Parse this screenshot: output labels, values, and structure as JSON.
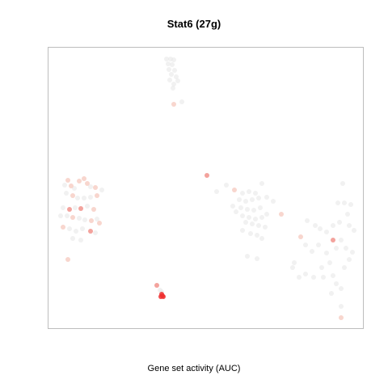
{
  "chart_data": {
    "type": "scatter",
    "title": "Stat6 (27g)",
    "xlabel": "Gene set activity (AUC)",
    "ylabel": "",
    "xlim": [
      0,
      390
    ],
    "ylim": [
      0,
      348
    ],
    "grid": false,
    "legend": "none",
    "colors": {
      "low": "#e6e6e6",
      "mid": "#f6c8bd",
      "high": "#ee3030"
    },
    "series": [
      {
        "values_note_units": "x,y in plot data units; level 0=none,1=light,2=medium,3=high",
        "points": [
          [
            146,
            334,
            0
          ],
          [
            151,
            334,
            0
          ],
          [
            155,
            333,
            0
          ],
          [
            148,
            328,
            0
          ],
          [
            153,
            327,
            0
          ],
          [
            149,
            321,
            0
          ],
          [
            156,
            320,
            0
          ],
          [
            152,
            315,
            0
          ],
          [
            158,
            312,
            0
          ],
          [
            150,
            308,
            0
          ],
          [
            155,
            303,
            0
          ],
          [
            160,
            307,
            0
          ],
          [
            154,
            298,
            0
          ],
          [
            165,
            281,
            0
          ],
          [
            155,
            278,
            1
          ],
          [
            24,
            184,
            1
          ],
          [
            20,
            178,
            0
          ],
          [
            28,
            177,
            1
          ],
          [
            32,
            174,
            0
          ],
          [
            38,
            183,
            1
          ],
          [
            44,
            186,
            1
          ],
          [
            48,
            180,
            1
          ],
          [
            52,
            176,
            0
          ],
          [
            58,
            175,
            1
          ],
          [
            66,
            172,
            0
          ],
          [
            22,
            168,
            0
          ],
          [
            30,
            165,
            1
          ],
          [
            36,
            162,
            0
          ],
          [
            44,
            162,
            0
          ],
          [
            52,
            163,
            0
          ],
          [
            60,
            165,
            1
          ],
          [
            18,
            150,
            0
          ],
          [
            26,
            148,
            2
          ],
          [
            33,
            150,
            0
          ],
          [
            40,
            149,
            2
          ],
          [
            48,
            152,
            0
          ],
          [
            56,
            148,
            1
          ],
          [
            15,
            140,
            0
          ],
          [
            23,
            140,
            0
          ],
          [
            30,
            138,
            1
          ],
          [
            38,
            137,
            0
          ],
          [
            45,
            135,
            0
          ],
          [
            53,
            134,
            1
          ],
          [
            60,
            136,
            0
          ],
          [
            63,
            131,
            1
          ],
          [
            18,
            126,
            1
          ],
          [
            26,
            124,
            0
          ],
          [
            34,
            121,
            0
          ],
          [
            42,
            124,
            0
          ],
          [
            52,
            121,
            2
          ],
          [
            58,
            119,
            0
          ],
          [
            30,
            112,
            0
          ],
          [
            40,
            110,
            0
          ],
          [
            24,
            86,
            1
          ],
          [
            196,
            190,
            2
          ],
          [
            208,
            170,
            0
          ],
          [
            220,
            178,
            0
          ],
          [
            230,
            172,
            1
          ],
          [
            240,
            168,
            0
          ],
          [
            248,
            170,
            0
          ],
          [
            256,
            168,
            0
          ],
          [
            264,
            180,
            0
          ],
          [
            236,
            160,
            0
          ],
          [
            244,
            158,
            0
          ],
          [
            252,
            160,
            0
          ],
          [
            260,
            162,
            0
          ],
          [
            270,
            163,
            0
          ],
          [
            278,
            158,
            0
          ],
          [
            228,
            152,
            0
          ],
          [
            238,
            150,
            0
          ],
          [
            246,
            148,
            0
          ],
          [
            254,
            147,
            0
          ],
          [
            262,
            150,
            0
          ],
          [
            270,
            142,
            0
          ],
          [
            288,
            142,
            1
          ],
          [
            232,
            145,
            0
          ],
          [
            240,
            140,
            0
          ],
          [
            248,
            138,
            0
          ],
          [
            256,
            136,
            0
          ],
          [
            264,
            138,
            0
          ],
          [
            244,
            132,
            0
          ],
          [
            252,
            130,
            0
          ],
          [
            260,
            128,
            0
          ],
          [
            268,
            126,
            0
          ],
          [
            240,
            122,
            0
          ],
          [
            250,
            118,
            0
          ],
          [
            258,
            116,
            0
          ],
          [
            264,
            112,
            0
          ],
          [
            246,
            90,
            0
          ],
          [
            258,
            87,
            0
          ],
          [
            320,
            134,
            0
          ],
          [
            330,
            128,
            0
          ],
          [
            336,
            124,
            0
          ],
          [
            344,
            120,
            0
          ],
          [
            352,
            128,
            0
          ],
          [
            360,
            132,
            0
          ],
          [
            364,
            180,
            0
          ],
          [
            358,
            156,
            0
          ],
          [
            366,
            156,
            0
          ],
          [
            374,
            154,
            0
          ],
          [
            370,
            142,
            0
          ],
          [
            372,
            128,
            0
          ],
          [
            378,
            122,
            0
          ],
          [
            362,
            110,
            0
          ],
          [
            368,
            100,
            0
          ],
          [
            376,
            95,
            0
          ],
          [
            352,
            110,
            2
          ],
          [
            356,
            100,
            0
          ],
          [
            344,
            94,
            0
          ],
          [
            334,
            104,
            0
          ],
          [
            326,
            96,
            0
          ],
          [
            318,
            104,
            0
          ],
          [
            312,
            114,
            1
          ],
          [
            304,
            82,
            0
          ],
          [
            302,
            76,
            0
          ],
          [
            310,
            64,
            0
          ],
          [
            318,
            68,
            0
          ],
          [
            328,
            64,
            0
          ],
          [
            340,
            64,
            0
          ],
          [
            352,
            66,
            0
          ],
          [
            356,
            56,
            0
          ],
          [
            362,
            50,
            0
          ],
          [
            350,
            44,
            0
          ],
          [
            338,
            76,
            0
          ],
          [
            348,
            82,
            0
          ],
          [
            366,
            76,
            0
          ],
          [
            372,
            86,
            0
          ],
          [
            362,
            28,
            0
          ],
          [
            362,
            14,
            1
          ],
          [
            134,
            54,
            2
          ],
          [
            138,
            48,
            0
          ],
          [
            140,
            46,
            0
          ],
          [
            140,
            43,
            3
          ],
          [
            141,
            41,
            3
          ],
          [
            139,
            40,
            3
          ],
          [
            142,
            40,
            3
          ]
        ]
      }
    ]
  }
}
